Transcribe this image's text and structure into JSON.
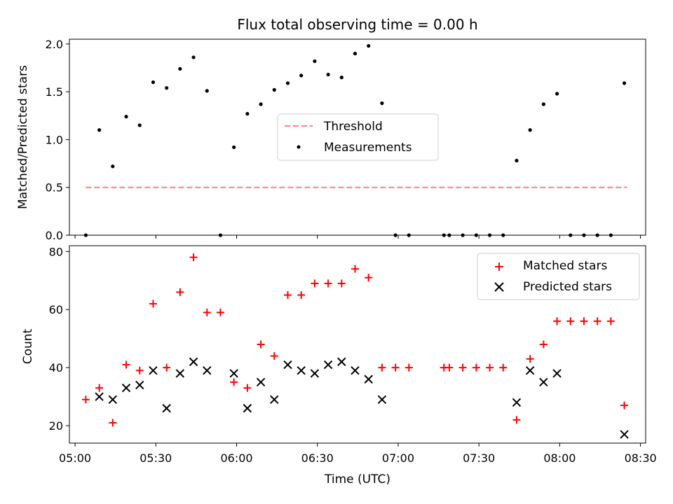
{
  "title": "Flux total observing time = 0.00 h",
  "chart_data": [
    {
      "type": "scatter",
      "ylabel": "Matched/Predicted stars",
      "ylim": [
        0,
        2.05
      ],
      "yticks": [
        "0.0",
        "0.5",
        "1.0",
        "1.5",
        "2.0"
      ],
      "xlim_hours": [
        4.965,
        8.532
      ],
      "legend": {
        "placement": "center",
        "entries": [
          {
            "label": "Threshold",
            "style": "dashed-line",
            "color": "#ff7f7f"
          },
          {
            "label": "Measurements",
            "style": "dot",
            "color": "#000000"
          }
        ]
      },
      "series": [
        {
          "name": "Threshold",
          "kind": "line",
          "color": "#ff7f7f",
          "x": [
            "05:04",
            "08:25"
          ],
          "y": [
            0.5,
            0.5
          ]
        },
        {
          "name": "Measurements",
          "kind": "scatter",
          "color": "#000000",
          "x": [
            "05:04",
            "05:09",
            "05:14",
            "05:19",
            "05:24",
            "05:29",
            "05:34",
            "05:39",
            "05:44",
            "05:49",
            "05:54",
            "05:59",
            "06:04",
            "06:09",
            "06:14",
            "06:19",
            "06:24",
            "06:29",
            "06:34",
            "06:39",
            "06:44",
            "06:49",
            "06:54",
            "06:59",
            "07:04",
            "07:17",
            "07:19",
            "07:24",
            "07:29",
            "07:34",
            "07:39",
            "07:44",
            "07:49",
            "07:54",
            "07:59",
            "08:04",
            "08:09",
            "08:14",
            "08:19",
            "08:24"
          ],
          "y": [
            0.0,
            1.1,
            0.72,
            1.24,
            1.15,
            1.6,
            1.54,
            1.74,
            1.86,
            1.51,
            0.0,
            0.92,
            1.27,
            1.37,
            1.52,
            1.59,
            1.67,
            1.82,
            1.68,
            1.65,
            1.9,
            1.98,
            1.38,
            0.0,
            0.0,
            0.0,
            0.0,
            0.0,
            0.0,
            0.0,
            0.0,
            0.78,
            1.1,
            1.37,
            1.48,
            0.0,
            0.0,
            0.0,
            0.0,
            1.59
          ]
        }
      ]
    },
    {
      "type": "scatter",
      "xlabel": "Time (UTC)",
      "ylabel": "Count",
      "ylim": [
        14,
        82
      ],
      "yticks": [
        "20",
        "40",
        "60",
        "80"
      ],
      "xticks": [
        "05:00",
        "05:30",
        "06:00",
        "06:30",
        "07:00",
        "07:30",
        "08:00",
        "08:30"
      ],
      "xlim_hours": [
        4.965,
        8.532
      ],
      "legend": {
        "placement": "upper right",
        "entries": [
          {
            "label": "Matched stars",
            "style": "plus",
            "color": "#ff0000"
          },
          {
            "label": "Predicted stars",
            "style": "cross",
            "color": "#000000"
          }
        ]
      },
      "series": [
        {
          "name": "Matched stars",
          "marker": "plus",
          "color": "#ff0000",
          "x": [
            "05:04",
            "05:09",
            "05:14",
            "05:19",
            "05:24",
            "05:29",
            "05:34",
            "05:39",
            "05:44",
            "05:49",
            "05:54",
            "05:59",
            "06:04",
            "06:09",
            "06:14",
            "06:19",
            "06:24",
            "06:29",
            "06:34",
            "06:39",
            "06:44",
            "06:49",
            "06:54",
            "06:59",
            "07:04",
            "07:17",
            "07:19",
            "07:24",
            "07:29",
            "07:34",
            "07:39",
            "07:44",
            "07:49",
            "07:54",
            "07:59",
            "08:04",
            "08:09",
            "08:14",
            "08:19",
            "08:24"
          ],
          "y": [
            29,
            33,
            21,
            41,
            39,
            62,
            40,
            66,
            78,
            59,
            59,
            35,
            33,
            48,
            44,
            65,
            65,
            69,
            69,
            69,
            74,
            71,
            40,
            40,
            40,
            40,
            40,
            40,
            40,
            40,
            40,
            22,
            43,
            48,
            56,
            56,
            56,
            56,
            56,
            27
          ]
        },
        {
          "name": "Predicted stars",
          "marker": "cross",
          "color": "#000000",
          "x": [
            "05:09",
            "05:14",
            "05:19",
            "05:24",
            "05:29",
            "05:34",
            "05:39",
            "05:44",
            "05:49",
            "05:59",
            "06:04",
            "06:09",
            "06:14",
            "06:19",
            "06:24",
            "06:29",
            "06:34",
            "06:39",
            "06:44",
            "06:49",
            "06:54",
            "07:44",
            "07:49",
            "07:54",
            "07:59",
            "08:24"
          ],
          "y": [
            30,
            29,
            33,
            34,
            39,
            26,
            38,
            42,
            39,
            38,
            26,
            35,
            29,
            41,
            39,
            38,
            41,
            42,
            39,
            36,
            29,
            28,
            39,
            35,
            38,
            17
          ]
        }
      ]
    }
  ]
}
